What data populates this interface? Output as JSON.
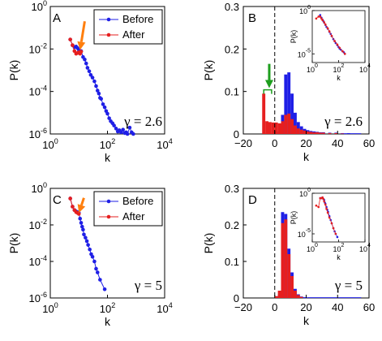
{
  "colors": {
    "before": "#1f1fe6",
    "after": "#e61f1f",
    "arrow_orange": "#ff7f0e",
    "arrow_green": "#1e9e1e"
  },
  "legend": {
    "before": "Before",
    "after": "After"
  },
  "chart_data": [
    {
      "id": "A",
      "type": "line",
      "panel_label": "A",
      "xlabel": "k",
      "ylabel": "P(k)",
      "xscale": "log",
      "yscale": "log",
      "xlim": [
        1,
        10000
      ],
      "ylim": [
        1e-06,
        1
      ],
      "xticks": [
        {
          "base": "10",
          "exp": "0"
        },
        {
          "base": "10",
          "exp": "2"
        },
        {
          "base": "10",
          "exp": "4"
        }
      ],
      "yticks": [
        {
          "base": "10",
          "exp": "0"
        },
        {
          "base": "10",
          "exp": "-2"
        },
        {
          "base": "10",
          "exp": "-4"
        },
        {
          "base": "10",
          "exp": "-6"
        }
      ],
      "annotation": "γ = 2.6",
      "legend": "top-right",
      "series": [
        {
          "name": "Before",
          "color": "before",
          "x": [
            5,
            6,
            7,
            8,
            9,
            10,
            12,
            14,
            16,
            18,
            20,
            23,
            26,
            30,
            35,
            40,
            45,
            50,
            55,
            60,
            70,
            80,
            90,
            100,
            115,
            130,
            150,
            170,
            200,
            230,
            260,
            300,
            350,
            400,
            450,
            500,
            600,
            700,
            800
          ],
          "y": [
            0.028,
            0.015,
            0.012,
            0.013,
            0.011,
            0.009,
            0.008,
            0.0042,
            0.0032,
            0.0021,
            0.0013,
            0.0009,
            0.0006,
            0.00045,
            0.0003,
            0.00018,
            0.00011,
            8e-05,
            5e-05,
            4.5e-05,
            2.5e-05,
            1.8e-05,
            1.2e-05,
            9e-06,
            5.5e-06,
            4e-06,
            3.2e-06,
            2.5e-06,
            1.8e-06,
            1.3e-06,
            1.5e-06,
            1.2e-06,
            1.6e-06,
            1.1e-06,
            1.2e-06,
            1e-06,
            2e-06,
            1.2e-06,
            1e-06
          ]
        },
        {
          "name": "After",
          "color": "after",
          "x": [
            5,
            6,
            7,
            8,
            9,
            10,
            11,
            12
          ],
          "y": [
            0.028,
            0.015,
            0.008,
            0.006,
            0.0065,
            0.007,
            0.006,
            0.0075
          ]
        }
      ],
      "arrow": {
        "color": "arrow_orange",
        "from": [
          16,
          0.2
        ],
        "to": [
          11,
          0.009
        ]
      }
    },
    {
      "id": "B",
      "type": "bar",
      "panel_label": "B",
      "xlabel": "k",
      "ylabel": "P(k)",
      "xlim": [
        -20,
        60
      ],
      "ylim": [
        0,
        0.3
      ],
      "xticks": [
        "−20",
        "0",
        "20",
        "40",
        "60"
      ],
      "yticks": [
        "0",
        "0.1",
        "0.2",
        "0.3"
      ],
      "annotation": "γ = 2.6",
      "dashed_line_x": 0,
      "bin_width": 2,
      "series": [
        {
          "name": "Before",
          "color": "before",
          "bins": [
            0,
            2,
            4,
            6,
            8,
            10,
            12,
            14,
            16,
            18,
            20,
            22,
            24,
            26,
            28,
            30,
            34,
            38,
            42,
            46,
            50
          ],
          "values": [
            0,
            0.005,
            0.045,
            0.14,
            0.145,
            0.095,
            0.05,
            0.028,
            0.018,
            0.012,
            0.009,
            0.007,
            0.006,
            0.005,
            0.004,
            0.004,
            0.003,
            0.003,
            0.002,
            0.002,
            0.001
          ]
        },
        {
          "name": "After",
          "color": "after",
          "bins": [
            -8,
            -6,
            -4,
            -2,
            0,
            2,
            4,
            6,
            8,
            10,
            12,
            14,
            16,
            18,
            20,
            22,
            24,
            26,
            28,
            30,
            34,
            38,
            42
          ],
          "values": [
            0.095,
            0.03,
            0.028,
            0.027,
            0.027,
            0.025,
            0.03,
            0.045,
            0.048,
            0.035,
            0.02,
            0.013,
            0.01,
            0.008,
            0.006,
            0.005,
            0.004,
            0.004,
            0.003,
            0.003,
            0.002,
            0.002,
            0.001
          ]
        }
      ],
      "bracket": {
        "x": [
          -7,
          -2
        ],
        "y": 0.1
      },
      "arrow": {
        "color": "arrow_green",
        "from": [
          -3.5,
          0.165
        ],
        "to": [
          -3.5,
          0.108
        ]
      },
      "inset": {
        "xlabel": "k",
        "ylabel": "P(k)",
        "xscale": "log",
        "yscale": "log",
        "xticks": [
          {
            "base": "10",
            "exp": "0"
          },
          {
            "base": "10",
            "exp": "2"
          },
          {
            "base": "10",
            "exp": "4"
          }
        ],
        "yticks": [
          {
            "base": "10",
            "exp": "0"
          },
          {
            "base": "10",
            "exp": "-5"
          }
        ],
        "xlim": [
          1,
          10000
        ],
        "ylim": [
          1e-06,
          1
        ],
        "series": [
          {
            "name": "Before",
            "color": "before",
            "x": [
              4,
              5,
              6,
              7,
              8,
              10,
              12,
              15,
              20,
              25,
              30,
              40,
              50,
              60,
              80,
              100,
              120,
              150,
              200,
              250,
              300
            ],
            "y": [
              0.3,
              0.15,
              0.09,
              0.06,
              0.04,
              0.022,
              0.013,
              0.008,
              0.0035,
              0.002,
              0.0011,
              0.0005,
              0.0003,
              0.00018,
              0.0001,
              6e-05,
              4e-05,
              3e-05,
              2e-05,
              1.5e-05,
              1e-05
            ]
          },
          {
            "name": "After",
            "color": "after",
            "x": [
              2,
              3,
              4,
              5,
              6,
              8,
              10,
              15,
              20,
              30,
              50,
              80,
              120,
              200,
              300
            ],
            "y": [
              0.12,
              0.2,
              0.2,
              0.12,
              0.08,
              0.045,
              0.025,
              0.009,
              0.004,
              0.0012,
              0.0003,
              0.00012,
              5e-05,
              2e-05,
              1e-05
            ]
          }
        ]
      }
    },
    {
      "id": "C",
      "type": "line",
      "panel_label": "C",
      "xlabel": "k",
      "ylabel": "P(k)",
      "xscale": "log",
      "yscale": "log",
      "xlim": [
        1,
        10000
      ],
      "ylim": [
        1e-06,
        1
      ],
      "xticks": [
        {
          "base": "10",
          "exp": "0"
        },
        {
          "base": "10",
          "exp": "2"
        },
        {
          "base": "10",
          "exp": "4"
        }
      ],
      "yticks": [
        {
          "base": "10",
          "exp": "0"
        },
        {
          "base": "10",
          "exp": "-2"
        },
        {
          "base": "10",
          "exp": "-4"
        },
        {
          "base": "10",
          "exp": "-6"
        }
      ],
      "annotation": "γ = 5",
      "legend": "top-right",
      "series": [
        {
          "name": "Before",
          "color": "before",
          "x": [
            5,
            6,
            7,
            8,
            9,
            10,
            11,
            12,
            13,
            14,
            15,
            17,
            19,
            21,
            24,
            27,
            30,
            35,
            40,
            45,
            55,
            80
          ],
          "y": [
            0.28,
            0.1,
            0.065,
            0.055,
            0.05,
            0.045,
            0.022,
            0.013,
            0.008,
            0.0055,
            0.003,
            0.002,
            0.0013,
            0.0008,
            0.00045,
            0.00025,
            0.00018,
            0.0001,
            4e-05,
            2.5e-05,
            1e-05,
            3e-06
          ]
        },
        {
          "name": "After",
          "color": "after",
          "x": [
            5,
            6,
            7,
            8,
            9,
            10
          ],
          "y": [
            0.28,
            0.1,
            0.065,
            0.05,
            0.045,
            0.04
          ]
        }
      ],
      "arrow": {
        "color": "arrow_orange",
        "from": [
          15,
          0.3
        ],
        "to": [
          10,
          0.045
        ]
      }
    },
    {
      "id": "D",
      "type": "bar",
      "panel_label": "D",
      "xlabel": "k",
      "ylabel": "P(k)",
      "xlim": [
        -20,
        60
      ],
      "ylim": [
        0,
        0.3
      ],
      "xticks": [
        "−20",
        "0",
        "20",
        "40",
        "60"
      ],
      "yticks": [
        "0",
        "0.1",
        "0.2",
        "0.3"
      ],
      "annotation": "γ = 5",
      "dashed_line_x": 0,
      "bin_width": 2,
      "series": [
        {
          "name": "Before",
          "color": "before",
          "bins": [
            2,
            4,
            6,
            8,
            10,
            12,
            14,
            16,
            18
          ],
          "values": [
            0.01,
            0.235,
            0.23,
            0.135,
            0.07,
            0.025,
            0.01,
            0.004,
            0.002
          ]
        },
        {
          "name": "After",
          "color": "after",
          "bins": [
            0,
            2,
            4,
            6,
            8,
            10,
            12,
            14,
            16
          ],
          "values": [
            0.005,
            0.02,
            0.205,
            0.215,
            0.12,
            0.06,
            0.02,
            0.008,
            0.003
          ]
        }
      ],
      "inset": {
        "xlabel": "k",
        "ylabel": "P(k)",
        "xscale": "log",
        "yscale": "log",
        "xticks": [
          {
            "base": "10",
            "exp": "0"
          },
          {
            "base": "10",
            "exp": "2"
          },
          {
            "base": "10",
            "exp": "4"
          }
        ],
        "yticks": [
          {
            "base": "10",
            "exp": "0"
          },
          {
            "base": "10",
            "exp": "-5"
          }
        ],
        "xlim": [
          1,
          10000
        ],
        "ylim": [
          1e-06,
          1
        ],
        "series": [
          {
            "name": "Before",
            "color": "before",
            "x": [
              4,
              5,
              6,
              7,
              8,
              9,
              10,
              12,
              14,
              16,
              20,
              25,
              30,
              40,
              50,
              60,
              80
            ],
            "y": [
              0.25,
              0.25,
              0.3,
              0.2,
              0.15,
              0.07,
              0.05,
              0.02,
              0.009,
              0.005,
              0.0015,
              0.0005,
              0.0002,
              5e-05,
              2e-05,
              1e-05,
              4e-06
            ]
          },
          {
            "name": "After",
            "color": "after",
            "x": [
              2,
              3,
              4,
              5,
              6,
              7,
              8,
              10,
              12,
              15,
              20,
              30,
              40,
              60
            ],
            "y": [
              0.03,
              0.02,
              0.25,
              0.25,
              0.3,
              0.2,
              0.1,
              0.04,
              0.012,
              0.004,
              0.001,
              0.0002,
              5e-05,
              1e-05
            ]
          }
        ]
      }
    }
  ]
}
